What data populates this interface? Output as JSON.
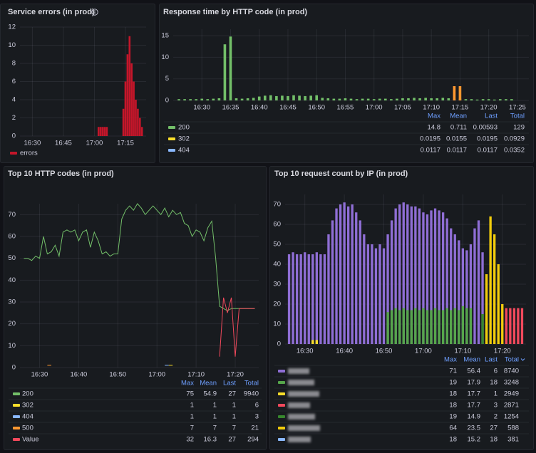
{
  "chart_data": [
    {
      "type": "bar",
      "title": "Service errors (in prod)",
      "x": [
        "17:02",
        "17:03",
        "17:04",
        "17:05",
        "17:06",
        "17:14",
        "17:15",
        "17:16",
        "17:17",
        "17:18",
        "17:19",
        "17:20",
        "17:21",
        "17:22",
        "17:23"
      ],
      "series": [
        {
          "name": "errors",
          "color": "#c4162a",
          "values": [
            1,
            1,
            1,
            1,
            1,
            3,
            6,
            9,
            11,
            8,
            6,
            4,
            3,
            2,
            1
          ]
        }
      ],
      "xlim": [
        "16:24",
        "17:25"
      ],
      "xticks": [
        "16:30",
        "16:45",
        "17:00",
        "17:15"
      ],
      "ylim": [
        0,
        12
      ],
      "yticks": [
        0,
        2,
        4,
        6,
        8,
        10,
        12
      ],
      "grid": true
    },
    {
      "type": "bar",
      "title": "Response time by HTTP code (in prod)",
      "x": [
        "16:26",
        "16:27",
        "16:28",
        "16:29",
        "16:30",
        "16:31",
        "16:32",
        "16:33",
        "16:34",
        "16:35",
        "16:36",
        "16:37",
        "16:38",
        "16:39",
        "16:40",
        "16:41",
        "16:42",
        "16:43",
        "16:44",
        "16:45",
        "16:46",
        "16:47",
        "16:48",
        "16:49",
        "16:50",
        "16:51",
        "16:52",
        "16:53",
        "16:54",
        "16:55",
        "16:56",
        "16:57",
        "16:58",
        "16:59",
        "17:00",
        "17:01",
        "17:02",
        "17:03",
        "17:04",
        "17:05",
        "17:06",
        "17:07",
        "17:08",
        "17:09",
        "17:10",
        "17:11",
        "17:12",
        "17:13",
        "17:14",
        "17:15",
        "17:16",
        "17:17",
        "17:18",
        "17:19",
        "17:20",
        "17:21",
        "17:22",
        "17:23",
        "17:24"
      ],
      "series": [
        {
          "name": "200",
          "color": "#73bf69",
          "stats": [
            14.8,
            0.711,
            0.00593,
            129
          ],
          "values": [
            0.3,
            0.3,
            0.3,
            0.3,
            0.4,
            0.3,
            0.4,
            0.5,
            13,
            14.8,
            0.5,
            0.4,
            0.5,
            0.6,
            0.9,
            1.1,
            1.2,
            1.0,
            1.1,
            1.0,
            1.2,
            1.1,
            1.0,
            1.1,
            1.2,
            0.6,
            0.5,
            0.4,
            0.4,
            0.5,
            0.4,
            0.3,
            0.4,
            0.4,
            0.3,
            0.4,
            0.4,
            0.3,
            0.4,
            0.5,
            0.5,
            0.6,
            0.5,
            0.6,
            0.5,
            0.5,
            0.6,
            0.5,
            0.4,
            0.4,
            0.3,
            0.3,
            0.2,
            0.3,
            0.3,
            0.2,
            0.3,
            0.3,
            0.3
          ]
        },
        {
          "name": "302",
          "color": "#fade2a",
          "stats": [
            0.0195,
            0.0155,
            0.0195,
            0.0929
          ]
        },
        {
          "name": "404",
          "color": "#8ab8ff",
          "stats": [
            0.0117,
            0.0117,
            0.0117,
            0.0352
          ]
        },
        {
          "color": "#ff9830",
          "x": [
            "17:14",
            "17:15"
          ],
          "values": [
            3.3,
            3.3
          ]
        }
      ],
      "legend_columns": [
        "Max",
        "Mean",
        "Last",
        "Total"
      ],
      "xlim": [
        "16:25",
        "17:27"
      ],
      "xticks": [
        "16:30",
        "16:35",
        "16:40",
        "16:45",
        "16:50",
        "16:55",
        "17:00",
        "17:05",
        "17:10",
        "17:15",
        "17:20",
        "17:25"
      ],
      "ylim": [
        0,
        16.5
      ],
      "yticks": [
        0,
        5,
        10,
        15
      ],
      "grid": true
    },
    {
      "type": "line",
      "title": "Top 10 HTTP codes (in prod)",
      "x": [
        "16:26",
        "16:27",
        "16:28",
        "16:29",
        "16:30",
        "16:31",
        "16:32",
        "16:33",
        "16:34",
        "16:35",
        "16:36",
        "16:37",
        "16:38",
        "16:39",
        "16:40",
        "16:41",
        "16:42",
        "16:43",
        "16:44",
        "16:45",
        "16:46",
        "16:47",
        "16:48",
        "16:49",
        "16:50",
        "16:51",
        "16:52",
        "16:53",
        "16:54",
        "16:55",
        "16:56",
        "16:57",
        "16:58",
        "16:59",
        "17:00",
        "17:01",
        "17:02",
        "17:03",
        "17:04",
        "17:05",
        "17:06",
        "17:07",
        "17:08",
        "17:09",
        "17:10",
        "17:11",
        "17:12",
        "17:13",
        "17:14",
        "17:15",
        "17:16",
        "17:17",
        "17:18",
        "17:19",
        "17:20",
        "17:21",
        "17:22",
        "17:23",
        "17:24",
        "17:25"
      ],
      "series": [
        {
          "name": "200",
          "color": "#73bf69",
          "stats": [
            75,
            54.9,
            27,
            9940
          ],
          "values": [
            50,
            50,
            49,
            51,
            50,
            60,
            52,
            53,
            56,
            51,
            62,
            63,
            62,
            63,
            58,
            62,
            63,
            55,
            62,
            58,
            52,
            53,
            51,
            52,
            52,
            68,
            72,
            74,
            72,
            75,
            73,
            70,
            72,
            74,
            72,
            70,
            73,
            69,
            72,
            70,
            71,
            66,
            65,
            60,
            63,
            62,
            58,
            64,
            67,
            50,
            28,
            27,
            26,
            27,
            27,
            27,
            27,
            27,
            27,
            27
          ]
        },
        {
          "name": "302",
          "color": "#fade2a",
          "stats": [
            1,
            1,
            1,
            6
          ],
          "x": [
            "17:03",
            "17:04"
          ],
          "values": [
            1,
            1
          ]
        },
        {
          "name": "404",
          "color": "#8ab8ff",
          "stats": [
            1,
            1,
            1,
            3
          ],
          "x": [
            "17:02",
            "17:03"
          ],
          "values": [
            1,
            1
          ]
        },
        {
          "name": "500",
          "color": "#ff9830",
          "stats": [
            7,
            7,
            7,
            21
          ],
          "x": [
            "16:32",
            "16:33"
          ],
          "values": [
            1,
            1
          ]
        },
        {
          "name": "Value",
          "color": "#f2495c",
          "stats": [
            32,
            16.3,
            27,
            294
          ],
          "x": [
            "17:16",
            "17:17",
            "17:18",
            "17:19",
            "17:20",
            "17:21",
            "17:22",
            "17:23",
            "17:24",
            "17:25"
          ],
          "values": [
            5,
            32,
            25,
            32,
            5,
            27,
            27,
            27,
            27,
            27
          ]
        }
      ],
      "legend_columns": [
        "Max",
        "Mean",
        "Last",
        "Total"
      ],
      "xlim": [
        "16:25",
        "17:26"
      ],
      "xticks": [
        "16:30",
        "16:40",
        "16:50",
        "17:00",
        "17:10",
        "17:20"
      ],
      "ylim": [
        0,
        75
      ],
      "yticks": [
        0,
        10,
        20,
        30,
        40,
        50,
        60,
        70
      ],
      "grid": true
    },
    {
      "type": "bar",
      "title": "Top 10 request count by IP (in prod)",
      "x": [
        "16:26",
        "16:27",
        "16:28",
        "16:29",
        "16:30",
        "16:31",
        "16:32",
        "16:33",
        "16:34",
        "16:35",
        "16:36",
        "16:37",
        "16:38",
        "16:39",
        "16:40",
        "16:41",
        "16:42",
        "16:43",
        "16:44",
        "16:45",
        "16:46",
        "16:47",
        "16:48",
        "16:49",
        "16:50",
        "16:51",
        "16:52",
        "16:53",
        "16:54",
        "16:55",
        "16:56",
        "16:57",
        "16:58",
        "16:59",
        "17:00",
        "17:01",
        "17:02",
        "17:03",
        "17:04",
        "17:05",
        "17:06",
        "17:07",
        "17:08",
        "17:09",
        "17:10",
        "17:11",
        "17:12",
        "17:13",
        "17:14",
        "17:15",
        "17:16",
        "17:17",
        "17:18",
        "17:19",
        "17:20",
        "17:21",
        "17:22",
        "17:23",
        "17:24",
        "17:25"
      ],
      "series": [
        {
          "color": "#8f6ed5",
          "stats": [
            71,
            56.4,
            6,
            8740
          ],
          "values": [
            45,
            46,
            45,
            45,
            46,
            45,
            45,
            46,
            45,
            45,
            55,
            62,
            68,
            70,
            71,
            69,
            70,
            66,
            62,
            55,
            50,
            50,
            48,
            50,
            48,
            55,
            62,
            68,
            70,
            71,
            70,
            69,
            69,
            68,
            66,
            65,
            67,
            68,
            67,
            66,
            63,
            58,
            55,
            52,
            48,
            47,
            50,
            58,
            62,
            46,
            null,
            null,
            null,
            null,
            null,
            null,
            null,
            null,
            null,
            null
          ]
        },
        {
          "color": "#56a64b",
          "stats": [
            19,
            17.9,
            18,
            3248
          ],
          "x": [
            "16:51",
            "16:52",
            "16:53",
            "16:54",
            "16:55",
            "16:56",
            "16:57",
            "16:58",
            "16:59",
            "17:00",
            "17:01",
            "17:02",
            "17:03",
            "17:04",
            "17:05",
            "17:06",
            "17:07",
            "17:08",
            "17:09",
            "17:10",
            "17:11",
            "17:12"
          ],
          "values": [
            16,
            17,
            18,
            17,
            18,
            17,
            17,
            18,
            17,
            18,
            17,
            17,
            18,
            17,
            17,
            18,
            17,
            18,
            17,
            19,
            18,
            18
          ]
        },
        {
          "color": "#fade2a",
          "stats": [
            18,
            17.7,
            1,
            2949
          ],
          "x": [
            "16:32",
            "16:33"
          ],
          "values": [
            2,
            2
          ]
        },
        {
          "color": "#f2495c",
          "stats": [
            18,
            17.7,
            3,
            2871
          ],
          "x": [
            "17:21",
            "17:22",
            "17:23",
            "17:24",
            "17:25"
          ],
          "values": [
            18,
            18,
            18,
            18,
            18
          ]
        },
        {
          "color": "#37872d",
          "stats": [
            19,
            14.9,
            2,
            1254
          ],
          "x": [
            "17:15",
            "17:16"
          ],
          "values": [
            15,
            12
          ]
        },
        {
          "color": "#f2cc0c",
          "stats": [
            64,
            23.5,
            27,
            588
          ],
          "x": [
            "17:16",
            "17:17",
            "17:18",
            "17:19",
            "17:20"
          ],
          "values": [
            35,
            64,
            55,
            40,
            20
          ]
        },
        {
          "color": "#8ab8ff",
          "stats": [
            18,
            15.2,
            18,
            381
          ]
        }
      ],
      "legend_columns": [
        "Max",
        "Mean",
        "Last",
        "Total"
      ],
      "xlim": [
        "16:25",
        "17:26"
      ],
      "xticks": [
        "16:30",
        "16:40",
        "16:50",
        "17:00",
        "17:10",
        "17:20"
      ],
      "ylim": [
        0,
        75
      ],
      "yticks": [
        0,
        10,
        20,
        30,
        40,
        50,
        60,
        70
      ],
      "grid": true
    }
  ]
}
